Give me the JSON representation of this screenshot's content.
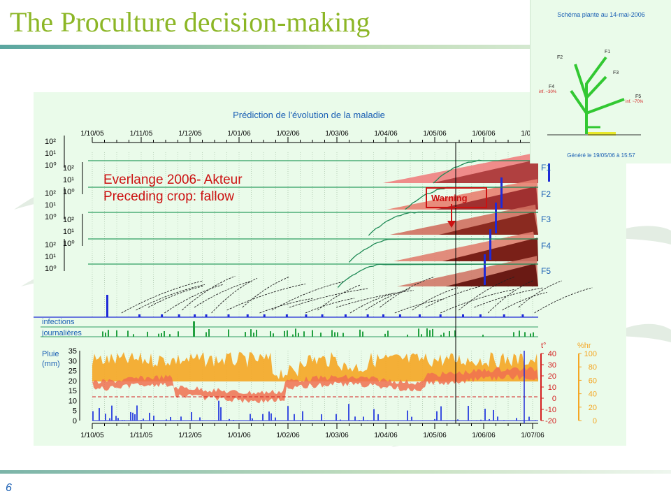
{
  "slide": {
    "title": "The Proculture decision-making",
    "page_number": "6",
    "annotation_lines": [
      "Everlange 2006- Akteur",
      "Preceding crop: fallow"
    ],
    "warning_label": "Warning"
  },
  "inset": {
    "title": "Schéma plante au 14-mai-2006",
    "footer": "Généré le 19/05/06 à 15:57",
    "leaf_labels": [
      "F1",
      "F2",
      "F3",
      "F4",
      "F5"
    ],
    "infection_labels": {
      "F4": "inf. ~30%",
      "F5": "inf. ~70%"
    }
  },
  "colors": {
    "title": "#8cb626",
    "panel_bg": "#eafbea",
    "axis_blue": "#1a5fb4",
    "annotation_red": "#cc1111",
    "humidity": "#f5a623",
    "temperature": "#f07050",
    "rain": "#3a4fe0"
  },
  "chart_data": {
    "type": "line",
    "title": "Prédiction de l'évolution de la maladie",
    "x_ticks": [
      "1/10/05",
      "1/11/05",
      "1/12/05",
      "1/01/06",
      "1/02/06",
      "1/03/06",
      "1/04/06",
      "1/05/06",
      "1/06/06",
      "1/07/06"
    ],
    "leaf_panels": [
      {
        "name": "F1",
        "y_tick_labels": [
          "10²",
          "10¹",
          "10⁰"
        ]
      },
      {
        "name": "F2",
        "y_tick_labels": [
          "10²",
          "10¹",
          "10⁰"
        ]
      },
      {
        "name": "F3",
        "y_tick_labels": [
          "10²",
          "10¹",
          "10⁰"
        ]
      },
      {
        "name": "F4",
        "y_tick_labels": [
          "10²",
          "10¹",
          "10⁰"
        ]
      },
      {
        "name": "F5",
        "y_tick_labels": [
          "10²",
          "10¹",
          "10⁰"
        ]
      }
    ],
    "infections_label": [
      "infections",
      "journalières"
    ],
    "rain": {
      "label": [
        "Pluie",
        "(mm)"
      ],
      "y_ticks": [
        0,
        5,
        10,
        15,
        20,
        25,
        30,
        35
      ]
    },
    "temperature": {
      "label": "t°",
      "y_ticks": [
        -20,
        -10,
        0,
        10,
        20,
        30,
        40
      ]
    },
    "humidity": {
      "label": "%hr",
      "y_ticks": [
        0,
        20,
        40,
        60,
        80,
        100
      ]
    }
  }
}
